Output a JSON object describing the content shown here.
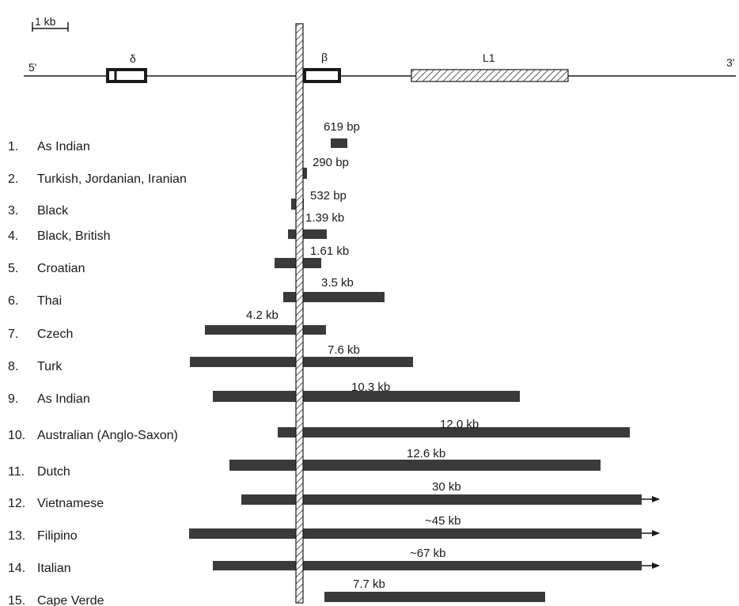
{
  "scale_bar": {
    "label": "1 kb"
  },
  "gene_map": {
    "five_prime": "5'",
    "three_prime": "3'",
    "genes": [
      {
        "id": "delta",
        "label": "δ"
      },
      {
        "id": "beta",
        "label": "β"
      },
      {
        "id": "l1",
        "label": "L1"
      }
    ]
  },
  "deletions": [
    {
      "number": "1.",
      "population": "As Indian",
      "size": "619 bp",
      "extends_beyond": false
    },
    {
      "number": "2.",
      "population": "Turkish, Jordanian, Iranian",
      "size": "290 bp",
      "extends_beyond": false
    },
    {
      "number": "3.",
      "population": "Black",
      "size": "532 bp",
      "extends_beyond": false
    },
    {
      "number": "4.",
      "population": "Black, British",
      "size": "1.39 kb",
      "extends_beyond": false
    },
    {
      "number": "5.",
      "population": "Croatian",
      "size": "1.61 kb",
      "extends_beyond": false
    },
    {
      "number": "6.",
      "population": "Thai",
      "size": "3.5 kb",
      "extends_beyond": false
    },
    {
      "number": "7.",
      "population": "Czech",
      "size": "4.2 kb",
      "extends_beyond": false
    },
    {
      "number": "8.",
      "population": "Turk",
      "size": "7.6 kb",
      "extends_beyond": false
    },
    {
      "number": "9.",
      "population": "As Indian",
      "size": "10.3 kb",
      "extends_beyond": false
    },
    {
      "number": "10.",
      "population": "Australian (Anglo-Saxon)",
      "size": "12.0 kb",
      "extends_beyond": false
    },
    {
      "number": "11.",
      "population": "Dutch",
      "size": "12.6 kb",
      "extends_beyond": false
    },
    {
      "number": "12.",
      "population": "Vietnamese",
      "size": "30 kb",
      "extends_beyond": true
    },
    {
      "number": "13.",
      "population": "Filipino",
      "size": "~45 kb",
      "extends_beyond": true
    },
    {
      "number": "14.",
      "population": "Italian",
      "size": "~67 kb",
      "extends_beyond": true
    },
    {
      "number": "15.",
      "population": "Cape Verde",
      "size": "7.7 kb",
      "extends_beyond": false
    }
  ]
}
